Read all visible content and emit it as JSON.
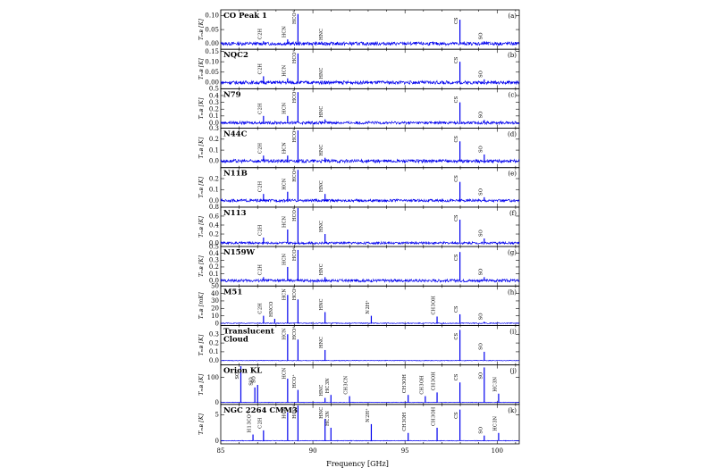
{
  "chart_data": {
    "type": "line",
    "xlabel": "Frequency [GHz]",
    "xlim": [
      85,
      101.2
    ],
    "xticks": [
      "85",
      "90",
      "95",
      "100"
    ],
    "series_color": "#0000ee",
    "panels": [
      {
        "name": "CO Peak 1",
        "letter": "(a)",
        "ylabel": "T_MB [K]",
        "ylim": [
          -0.02,
          0.12
        ],
        "yticks": [
          "0.00",
          "0.05",
          "0.10"
        ],
        "yvals": [
          0,
          0.05,
          0.1
        ],
        "noise": 0.006,
        "lines": [
          {
            "label": "C2H",
            "x": 87.32,
            "peak": 0.008
          },
          {
            "label": "HCN",
            "x": 88.63,
            "peak": 0.015
          },
          {
            "label": "HCO+",
            "x": 89.19,
            "peak": 0.105
          },
          {
            "label": "HNC",
            "x": 90.66,
            "peak": 0.006
          },
          {
            "label": "CS",
            "x": 97.98,
            "peak": 0.085
          },
          {
            "label": "SO",
            "x": 99.3,
            "peak": 0.008
          }
        ]
      },
      {
        "name": "NQC2",
        "letter": "(b)",
        "ylabel": "T_MB [K]",
        "ylim": [
          -0.03,
          0.16
        ],
        "yticks": [
          "0.00",
          "0.05",
          "0.10",
          "0.15"
        ],
        "yvals": [
          0,
          0.05,
          0.1,
          0.15
        ],
        "noise": 0.008,
        "lines": [
          {
            "label": "C2H",
            "x": 87.32,
            "peak": 0.03
          },
          {
            "label": "HCN",
            "x": 88.63,
            "peak": 0.02
          },
          {
            "label": "HCO+",
            "x": 89.19,
            "peak": 0.14
          },
          {
            "label": "HNC",
            "x": 90.66,
            "peak": 0.008
          },
          {
            "label": "CS",
            "x": 97.98,
            "peak": 0.1
          },
          {
            "label": "SO",
            "x": 99.3,
            "peak": 0.015
          }
        ]
      },
      {
        "name": "N79",
        "letter": "(c)",
        "ylabel": "T_MB [K]",
        "ylim": [
          -0.08,
          0.5
        ],
        "yticks": [
          "0.0",
          "0.1",
          "0.2",
          "0.3",
          "0.4",
          "0.5"
        ],
        "yvals": [
          0,
          0.1,
          0.2,
          0.3,
          0.4,
          0.5
        ],
        "noise": 0.02,
        "lines": [
          {
            "label": "C2H",
            "x": 87.32,
            "peak": 0.1
          },
          {
            "label": "HCN",
            "x": 88.63,
            "peak": 0.1
          },
          {
            "label": "HCO+",
            "x": 89.19,
            "peak": 0.45
          },
          {
            "label": "HNC",
            "x": 90.66,
            "peak": 0.05
          },
          {
            "label": "CS",
            "x": 97.98,
            "peak": 0.3
          },
          {
            "label": "SO",
            "x": 99.3,
            "peak": 0.04
          }
        ]
      },
      {
        "name": "N44C",
        "letter": "(d)",
        "ylabel": "T_MB [K]",
        "ylim": [
          -0.06,
          0.3
        ],
        "yticks": [
          "0.0",
          "0.1",
          "0.2",
          "0.3"
        ],
        "yvals": [
          0,
          0.1,
          0.2,
          0.3
        ],
        "noise": 0.015,
        "lines": [
          {
            "label": "C2H",
            "x": 87.32,
            "peak": 0.05
          },
          {
            "label": "HCN",
            "x": 88.63,
            "peak": 0.05
          },
          {
            "label": "HCO+",
            "x": 89.19,
            "peak": 0.28
          },
          {
            "label": "HNC",
            "x": 90.66,
            "peak": 0.03
          },
          {
            "label": "CS",
            "x": 97.98,
            "peak": 0.18
          },
          {
            "label": "SO",
            "x": 99.3,
            "peak": 0.06
          }
        ]
      },
      {
        "name": "N11B",
        "letter": "(e)",
        "ylabel": "T_MB [K]",
        "ylim": [
          -0.06,
          0.3
        ],
        "yticks": [
          "0.0",
          "0.1",
          "0.2"
        ],
        "yvals": [
          0,
          0.1,
          0.2
        ],
        "noise": 0.012,
        "lines": [
          {
            "label": "C2H",
            "x": 87.32,
            "peak": 0.06
          },
          {
            "label": "HCN",
            "x": 88.63,
            "peak": 0.08
          },
          {
            "label": "HCO+",
            "x": 89.19,
            "peak": 0.28
          },
          {
            "label": "HNC",
            "x": 90.66,
            "peak": 0.06
          },
          {
            "label": "CS",
            "x": 97.98,
            "peak": 0.17
          },
          {
            "label": "SO",
            "x": 99.3,
            "peak": 0.03
          }
        ]
      },
      {
        "name": "N113",
        "letter": "(f)",
        "ylabel": "T_MB [K]",
        "ylim": [
          -0.08,
          0.8
        ],
        "yticks": [
          "0.0",
          "0.2",
          "0.4",
          "0.6",
          "0.8"
        ],
        "yvals": [
          0,
          0.2,
          0.4,
          0.6,
          0.8
        ],
        "noise": 0.025,
        "lines": [
          {
            "label": "C2H",
            "x": 87.32,
            "peak": 0.12
          },
          {
            "label": "HCN",
            "x": 88.63,
            "peak": 0.3
          },
          {
            "label": "HCO+",
            "x": 89.19,
            "peak": 0.78
          },
          {
            "label": "HNC",
            "x": 90.66,
            "peak": 0.2
          },
          {
            "label": "CS",
            "x": 97.98,
            "peak": 0.52
          },
          {
            "label": "SO",
            "x": 99.3,
            "peak": 0.1
          }
        ]
      },
      {
        "name": "N159W",
        "letter": "(g)",
        "ylabel": "T_MB [K]",
        "ylim": [
          -0.08,
          0.5
        ],
        "yticks": [
          "0.0",
          "0.1",
          "0.2",
          "0.3",
          "0.4",
          "0.5"
        ],
        "yvals": [
          0,
          0.1,
          0.2,
          0.3,
          0.4,
          0.5
        ],
        "noise": 0.02,
        "lines": [
          {
            "label": "C2H",
            "x": 87.32,
            "peak": 0.05
          },
          {
            "label": "HCN",
            "x": 88.63,
            "peak": 0.2
          },
          {
            "label": "HCO+",
            "x": 89.19,
            "peak": 0.45
          },
          {
            "label": "HNC",
            "x": 90.66,
            "peak": 0.05
          },
          {
            "label": "CS",
            "x": 97.98,
            "peak": 0.42
          },
          {
            "label": "SO",
            "x": 99.3,
            "peak": 0.05
          }
        ]
      },
      {
        "name": "M51",
        "letter": "(h)",
        "ylabel": "T_MB [mK]",
        "ylim": [
          -3,
          50
        ],
        "yticks": [
          "0",
          "10",
          "20",
          "30",
          "40",
          "50"
        ],
        "yvals": [
          0,
          10,
          20,
          30,
          40,
          50
        ],
        "noise": 0.6,
        "lines": [
          {
            "label": "C2H",
            "x": 87.32,
            "peak": 10
          },
          {
            "label": "HNCO",
            "x": 87.93,
            "peak": 6
          },
          {
            "label": "HCN",
            "x": 88.63,
            "peak": 38
          },
          {
            "label": "HCO+",
            "x": 89.19,
            "peak": 32
          },
          {
            "label": "HNC",
            "x": 90.66,
            "peak": 15
          },
          {
            "label": "N2H+",
            "x": 93.17,
            "peak": 10
          },
          {
            "label": "CH3OH",
            "x": 96.74,
            "peak": 9
          },
          {
            "label": "CS",
            "x": 97.98,
            "peak": 12
          },
          {
            "label": "SO",
            "x": 99.3,
            "peak": 2
          }
        ]
      },
      {
        "name": "Translucent",
        "name2": "Cloud",
        "letter": "(i)",
        "ylabel": "T_MB [K]",
        "ylim": [
          -0.05,
          0.4
        ],
        "yticks": [
          "0.0",
          "0.1",
          "0.2",
          "0.3"
        ],
        "yvals": [
          0,
          0.1,
          0.2,
          0.3
        ],
        "noise": 0.003,
        "lines": [
          {
            "label": "HCN",
            "x": 88.63,
            "peak": 0.3
          },
          {
            "label": "HCO+",
            "x": 89.19,
            "peak": 0.24
          },
          {
            "label": "HNC",
            "x": 90.66,
            "peak": 0.12
          },
          {
            "label": "CS",
            "x": 97.98,
            "peak": 0.35
          },
          {
            "label": "SO",
            "x": 99.3,
            "peak": 0.1
          }
        ]
      },
      {
        "name": "Orion KL",
        "letter": "(j)",
        "ylabel": "T_MB [K]",
        "ylim": [
          -8,
          150
        ],
        "yticks": [
          "0",
          "100"
        ],
        "yvals": [
          0,
          100
        ],
        "noise": 1.0,
        "lines": [
          {
            "label": "SiO",
            "x": 86.85,
            "peak": 60
          },
          {
            "label": "SO",
            "x": 86.09,
            "peak": 145
          },
          {
            "label": "SO",
            "x": 87.0,
            "peak": 70
          },
          {
            "label": "HCN",
            "x": 88.63,
            "peak": 95
          },
          {
            "label": "HCO+",
            "x": 89.19,
            "peak": 50
          },
          {
            "label": "HNC",
            "x": 90.66,
            "peak": 18
          },
          {
            "label": "HC3N",
            "x": 90.98,
            "peak": 30
          },
          {
            "label": "CH3CN",
            "x": 91.99,
            "peak": 25
          },
          {
            "label": "CH3OH",
            "x": 95.17,
            "peak": 30
          },
          {
            "label": "CH3OH",
            "x": 96.1,
            "peak": 25
          },
          {
            "label": "CH3OH",
            "x": 96.74,
            "peak": 40
          },
          {
            "label": "CS",
            "x": 97.98,
            "peak": 80
          },
          {
            "label": "SO",
            "x": 99.3,
            "peak": 140
          },
          {
            "label": "HC3N",
            "x": 100.08,
            "peak": 35
          }
        ]
      },
      {
        "name": "NGC 2264 CMM3",
        "letter": "(k)",
        "ylabel": "T_MB [K]",
        "ylim": [
          -0.6,
          7
        ],
        "yticks": [
          "0",
          "5"
        ],
        "yvals": [
          0,
          5
        ],
        "noise": 0.06,
        "lines": [
          {
            "label": "H13CO+",
            "x": 86.75,
            "peak": 1.2
          },
          {
            "label": "C2H",
            "x": 87.32,
            "peak": 2.0
          },
          {
            "label": "HCN",
            "x": 88.63,
            "peak": 5.5
          },
          {
            "label": "HCO+",
            "x": 89.19,
            "peak": 6.8
          },
          {
            "label": "HNC",
            "x": 90.66,
            "peak": 4.2
          },
          {
            "label": "HC3N",
            "x": 90.98,
            "peak": 2.5
          },
          {
            "label": "N2H+",
            "x": 93.17,
            "peak": 3.2
          },
          {
            "label": "CH3OH",
            "x": 95.17,
            "peak": 1.5
          },
          {
            "label": "CH3OH",
            "x": 96.74,
            "peak": 2.5
          },
          {
            "label": "CS",
            "x": 97.98,
            "peak": 6.0
          },
          {
            "label": "SO",
            "x": 99.3,
            "peak": 1.0
          },
          {
            "label": "HC3N",
            "x": 100.08,
            "peak": 1.5
          }
        ]
      }
    ]
  }
}
